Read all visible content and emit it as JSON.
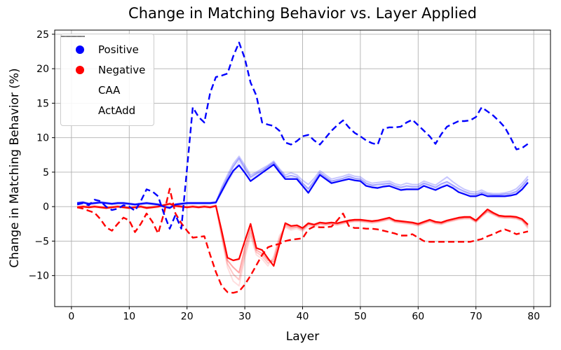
{
  "chart_data": {
    "type": "line",
    "title": "Change in Matching Behavior vs. Layer Applied",
    "xlabel": "Layer",
    "ylabel": "Change in Matching Behavior (%)",
    "xlim": [
      -2.9,
      82.9
    ],
    "ylim": [
      -14.5,
      25.6
    ],
    "xticks": [
      0,
      10,
      20,
      30,
      40,
      50,
      60,
      70,
      80
    ],
    "yticks": [
      -10,
      -5,
      0,
      5,
      10,
      15,
      20,
      25
    ],
    "grid": true,
    "style": {
      "grid_color": "#b0b0b0",
      "spine_color": "#000000",
      "background": "#ffffff",
      "positive_color": "#0000ff",
      "negative_color": "#ff0000",
      "legend_handle_color": "#7f7f7f"
    },
    "legend": {
      "position": "upper left",
      "entries": [
        {
          "label": "Positive",
          "marker": "dot",
          "color": "#0000ff"
        },
        {
          "label": "Negative",
          "marker": "dot",
          "color": "#ff0000"
        },
        {
          "label": "CAA",
          "marker": "line-solid",
          "color": "#7f7f7f"
        },
        {
          "label": "ActAdd",
          "marker": "line-dashed",
          "color": "#7f7f7f"
        }
      ]
    },
    "x": [
      1,
      2,
      3,
      4,
      5,
      6,
      7,
      8,
      9,
      10,
      11,
      12,
      13,
      14,
      15,
      16,
      17,
      18,
      19,
      20,
      21,
      22,
      23,
      24,
      25,
      26,
      27,
      28,
      29,
      30,
      31,
      32,
      33,
      34,
      35,
      36,
      37,
      38,
      39,
      40,
      41,
      42,
      43,
      44,
      45,
      46,
      47,
      48,
      49,
      50,
      51,
      52,
      53,
      54,
      55,
      56,
      57,
      58,
      59,
      60,
      61,
      62,
      63,
      64,
      65,
      66,
      67,
      68,
      69,
      70,
      71,
      72,
      73,
      74,
      75,
      76,
      77,
      78,
      79
    ],
    "series": [
      {
        "id": "caa-positive-run3",
        "group": "Positive",
        "method": "CAA",
        "color": "#0000ff",
        "dash": false,
        "alpha": 0.13,
        "width": 2,
        "values": [
          0.5,
          0.6,
          0.4,
          0.5,
          0.6,
          0.5,
          0.4,
          0.5,
          0.5,
          0.4,
          0.3,
          0.4,
          0.5,
          0.4,
          0.3,
          0.0,
          -0.2,
          0.3,
          0.4,
          0.5,
          0.5,
          0.5,
          0.5,
          0.5,
          0.6,
          2.0,
          3.5,
          4.9,
          6.6,
          5.3,
          4.1,
          4.6,
          5.1,
          5.7,
          6.3,
          5.1,
          4.2,
          4.2,
          4.1,
          3.2,
          2.3,
          3.5,
          4.7,
          4.1,
          3.6,
          3.7,
          3.9,
          4.2,
          3.9,
          3.8,
          3.2,
          3.0,
          2.9,
          3.1,
          3.2,
          2.8,
          2.6,
          2.7,
          2.7,
          2.7,
          3.2,
          2.9,
          2.6,
          3.0,
          3.3,
          2.9,
          2.3,
          2.0,
          1.7,
          1.6,
          1.9,
          1.6,
          1.6,
          1.6,
          1.6,
          1.7,
          2.0,
          2.7,
          3.7
        ]
      },
      {
        "id": "caa-positive-run2",
        "group": "Positive",
        "method": "CAA",
        "color": "#0000ff",
        "dash": false,
        "alpha": 0.22,
        "width": 2,
        "values": [
          0.4,
          0.5,
          0.3,
          0.4,
          0.5,
          0.4,
          0.3,
          0.4,
          0.4,
          0.3,
          0.2,
          0.3,
          0.4,
          0.3,
          0.2,
          -0.1,
          -0.3,
          0.2,
          0.3,
          0.4,
          0.4,
          0.4,
          0.4,
          0.4,
          0.5,
          2.8,
          4.6,
          6.2,
          7.3,
          6.0,
          4.6,
          5.0,
          5.5,
          6.0,
          6.6,
          5.5,
          4.6,
          4.9,
          4.6,
          3.8,
          3.2,
          4.1,
          5.2,
          4.6,
          4.0,
          4.2,
          4.4,
          4.7,
          4.4,
          4.3,
          3.7,
          3.4,
          3.5,
          3.6,
          3.7,
          3.3,
          3.1,
          3.4,
          3.2,
          3.2,
          3.7,
          3.4,
          3.1,
          3.7,
          4.3,
          3.6,
          3.0,
          2.5,
          2.2,
          2.1,
          2.4,
          2.0,
          1.9,
          1.9,
          2.0,
          2.2,
          2.6,
          3.4,
          4.4
        ]
      },
      {
        "id": "caa-positive-run1",
        "group": "Positive",
        "method": "CAA",
        "color": "#0000ff",
        "dash": false,
        "alpha": 0.35,
        "width": 2,
        "values": [
          0.6,
          0.7,
          0.5,
          0.6,
          0.7,
          0.6,
          0.5,
          0.6,
          0.6,
          0.5,
          0.4,
          0.5,
          0.6,
          0.5,
          0.4,
          0.1,
          -0.1,
          0.4,
          0.5,
          0.6,
          0.6,
          0.6,
          0.6,
          0.6,
          0.7,
          2.5,
          4.2,
          5.8,
          7.0,
          5.6,
          4.3,
          4.8,
          5.2,
          5.8,
          6.4,
          5.3,
          4.3,
          4.5,
          4.3,
          3.4,
          2.6,
          3.7,
          4.9,
          4.3,
          3.7,
          3.9,
          4.1,
          4.4,
          4.1,
          4.0,
          3.4,
          3.1,
          3.2,
          3.3,
          3.4,
          3.0,
          2.8,
          3.0,
          2.9,
          2.9,
          3.4,
          3.1,
          2.8,
          3.3,
          3.6,
          3.1,
          2.6,
          2.2,
          1.9,
          1.8,
          2.1,
          1.8,
          1.7,
          1.7,
          1.8,
          1.9,
          2.2,
          3.0,
          4.0
        ]
      },
      {
        "id": "caa-negative-run3",
        "group": "Negative",
        "method": "CAA",
        "color": "#ff0000",
        "dash": false,
        "alpha": 0.13,
        "width": 2,
        "values": [
          -0.1,
          0.0,
          -0.1,
          0.0,
          -0.1,
          -0.2,
          -0.1,
          0.0,
          -0.1,
          -0.2,
          -0.1,
          0.0,
          -0.2,
          -0.1,
          0.0,
          0.2,
          0.4,
          0.1,
          0.0,
          -0.1,
          0.0,
          -0.1,
          0.0,
          -0.1,
          0.1,
          -4.5,
          -8.8,
          -10.8,
          -11.5,
          -7.5,
          -4.3,
          -7.0,
          -7.6,
          -8.6,
          -7.2,
          -4.2,
          -3.0,
          -3.4,
          -3.2,
          -3.6,
          -2.8,
          -3.0,
          -2.6,
          -2.7,
          -2.6,
          -2.7,
          -2.5,
          -2.3,
          -2.2,
          -2.2,
          -2.3,
          -2.4,
          -2.3,
          -2.1,
          -1.9,
          -2.3,
          -2.4,
          -2.5,
          -2.6,
          -2.8,
          -2.5,
          -2.2,
          -2.5,
          -2.6,
          -2.3,
          -2.1,
          -1.9,
          -1.8,
          -1.8,
          -2.3,
          -1.5,
          -0.8,
          -1.2,
          -1.6,
          -1.7,
          -1.7,
          -1.8,
          -2.1,
          -3.2
        ]
      },
      {
        "id": "caa-negative-run2",
        "group": "Negative",
        "method": "CAA",
        "color": "#ff0000",
        "dash": false,
        "alpha": 0.22,
        "width": 2,
        "values": [
          -0.2,
          -0.1,
          -0.2,
          -0.1,
          -0.2,
          -0.3,
          -0.2,
          -0.1,
          -0.2,
          -0.3,
          -0.2,
          -0.1,
          -0.3,
          -0.2,
          -0.1,
          0.1,
          0.3,
          0.0,
          -0.1,
          -0.2,
          -0.1,
          -0.2,
          -0.1,
          -0.2,
          0.0,
          -4.2,
          -8.3,
          -9.8,
          -10.6,
          -6.8,
          -3.8,
          -6.6,
          -7.2,
          -8.2,
          -7.6,
          -4.6,
          -2.8,
          -3.2,
          -3.0,
          -3.4,
          -2.6,
          -2.8,
          -2.5,
          -2.6,
          -2.5,
          -2.6,
          -2.4,
          -2.2,
          -2.1,
          -2.1,
          -2.2,
          -2.3,
          -2.2,
          -2.0,
          -1.8,
          -2.2,
          -2.3,
          -2.4,
          -2.5,
          -2.7,
          -2.4,
          -2.1,
          -2.4,
          -2.5,
          -2.2,
          -2.0,
          -1.8,
          -1.7,
          -1.7,
          -2.2,
          -1.4,
          -0.7,
          -1.1,
          -1.5,
          -1.6,
          -1.6,
          -1.7,
          -2.0,
          -3.0
        ]
      },
      {
        "id": "caa-negative-run1",
        "group": "Negative",
        "method": "CAA",
        "color": "#ff0000",
        "dash": false,
        "alpha": 0.35,
        "width": 2,
        "values": [
          0.0,
          0.1,
          0.0,
          0.1,
          0.0,
          -0.1,
          0.0,
          0.1,
          0.0,
          -0.1,
          0.0,
          0.1,
          -0.1,
          0.0,
          0.1,
          0.3,
          0.5,
          0.2,
          0.1,
          0.0,
          0.1,
          0.0,
          0.1,
          0.0,
          0.2,
          -3.8,
          -7.8,
          -8.8,
          -9.6,
          -6.0,
          -3.2,
          -6.3,
          -6.8,
          -7.8,
          -8.0,
          -5.0,
          -2.6,
          -3.0,
          -2.9,
          -3.3,
          -2.5,
          -2.7,
          -2.4,
          -2.5,
          -2.4,
          -2.5,
          -2.3,
          -2.1,
          -2.0,
          -2.0,
          -2.1,
          -2.2,
          -2.1,
          -1.9,
          -1.7,
          -2.1,
          -2.2,
          -2.3,
          -2.4,
          -2.6,
          -2.3,
          -2.0,
          -2.3,
          -2.4,
          -2.1,
          -1.9,
          -1.7,
          -1.6,
          -1.6,
          -2.1,
          -1.3,
          -0.6,
          -1.0,
          -1.4,
          -1.5,
          -1.5,
          -1.6,
          -1.9,
          -2.8
        ]
      },
      {
        "id": "caa-negative-main",
        "group": "Negative",
        "method": "CAA",
        "color": "#ff0000",
        "dash": false,
        "alpha": 1.0,
        "width": 2.2,
        "values": [
          -0.1,
          0.0,
          -0.1,
          0.0,
          -0.1,
          -0.2,
          -0.1,
          0.0,
          -0.1,
          -0.2,
          -0.1,
          0.0,
          -0.2,
          -0.1,
          0.0,
          0.2,
          0.4,
          0.1,
          0.0,
          -0.1,
          0.0,
          -0.1,
          0.0,
          -0.1,
          0.1,
          -3.5,
          -7.4,
          -7.8,
          -7.6,
          -5.0,
          -2.5,
          -6.0,
          -6.3,
          -7.5,
          -8.6,
          -5.5,
          -2.4,
          -2.8,
          -2.7,
          -3.1,
          -2.4,
          -2.6,
          -2.3,
          -2.4,
          -2.3,
          -2.4,
          -2.2,
          -2.0,
          -1.9,
          -1.9,
          -2.0,
          -2.1,
          -2.0,
          -1.8,
          -1.6,
          -2.0,
          -2.1,
          -2.2,
          -2.3,
          -2.5,
          -2.2,
          -1.9,
          -2.2,
          -2.3,
          -2.0,
          -1.8,
          -1.6,
          -1.5,
          -1.5,
          -2.0,
          -1.2,
          -0.4,
          -0.9,
          -1.3,
          -1.4,
          -1.4,
          -1.5,
          -1.8,
          -2.6
        ]
      },
      {
        "id": "caa-positive-main",
        "group": "Positive",
        "method": "CAA",
        "color": "#0000ff",
        "dash": false,
        "alpha": 1.0,
        "width": 2.2,
        "values": [
          0.5,
          0.6,
          0.4,
          0.5,
          0.6,
          0.5,
          0.4,
          0.5,
          0.5,
          0.4,
          0.3,
          0.4,
          0.5,
          0.4,
          0.3,
          0.0,
          -0.2,
          0.3,
          0.4,
          0.5,
          0.5,
          0.5,
          0.5,
          0.5,
          0.6,
          2.2,
          3.8,
          5.2,
          6.0,
          4.9,
          3.7,
          4.3,
          4.9,
          5.5,
          6.1,
          5.0,
          4.0,
          4.0,
          4.0,
          3.0,
          2.0,
          3.3,
          4.6,
          4.0,
          3.4,
          3.6,
          3.8,
          4.0,
          3.8,
          3.7,
          3.0,
          2.8,
          2.7,
          2.9,
          3.0,
          2.7,
          2.4,
          2.5,
          2.5,
          2.5,
          3.0,
          2.7,
          2.4,
          2.8,
          3.1,
          2.7,
          2.1,
          1.8,
          1.5,
          1.5,
          1.8,
          1.5,
          1.5,
          1.5,
          1.5,
          1.6,
          1.8,
          2.5,
          3.5
        ]
      },
      {
        "id": "actadd-negative",
        "group": "Negative",
        "method": "ActAdd",
        "color": "#ff0000",
        "dash": true,
        "alpha": 1.0,
        "width": 2.4,
        "values": [
          -0.1,
          -0.3,
          -0.6,
          -0.9,
          -1.8,
          -3.0,
          -3.5,
          -2.5,
          -1.6,
          -2.0,
          -3.7,
          -2.5,
          -1.0,
          -2.2,
          -3.9,
          -1.0,
          2.6,
          -1.0,
          -2.4,
          -3.5,
          -4.5,
          -4.4,
          -4.3,
          -7.0,
          -9.5,
          -11.5,
          -12.4,
          -12.5,
          -12.3,
          -11.3,
          -10.0,
          -8.5,
          -7.0,
          -5.9,
          -5.6,
          -5.4,
          -5.0,
          -4.8,
          -4.7,
          -4.6,
          -3.3,
          -2.9,
          -3.0,
          -3.0,
          -2.9,
          -2.0,
          -1.0,
          -2.8,
          -3.1,
          -3.1,
          -3.2,
          -3.2,
          -3.3,
          -3.5,
          -3.7,
          -3.9,
          -4.2,
          -4.2,
          -4.0,
          -4.5,
          -5.0,
          -5.1,
          -5.1,
          -5.1,
          -5.1,
          -5.1,
          -5.1,
          -5.1,
          -5.1,
          -4.9,
          -4.7,
          -4.3,
          -4.0,
          -3.6,
          -3.3,
          -3.6,
          -4.0,
          -3.8,
          -3.6
        ]
      },
      {
        "id": "actadd-positive",
        "group": "Positive",
        "method": "ActAdd",
        "color": "#0000ff",
        "dash": true,
        "alpha": 1.0,
        "width": 2.4,
        "values": [
          0.3,
          0.5,
          0.2,
          1.0,
          0.8,
          0.0,
          -0.5,
          -0.3,
          0.2,
          0.0,
          -0.6,
          0.8,
          2.5,
          2.2,
          1.5,
          -1.0,
          -3.2,
          -1.2,
          -3.2,
          5.5,
          14.4,
          13.0,
          12.2,
          16.5,
          18.8,
          19.0,
          19.3,
          21.8,
          23.8,
          21.5,
          18.0,
          16.1,
          12.2,
          11.9,
          11.7,
          11.0,
          9.3,
          9.0,
          9.5,
          10.2,
          10.4,
          9.6,
          9.0,
          10.0,
          11.0,
          11.8,
          12.5,
          11.5,
          10.7,
          10.2,
          9.6,
          9.2,
          9.0,
          11.3,
          11.5,
          11.5,
          11.6,
          12.2,
          12.6,
          11.8,
          11.0,
          10.2,
          9.1,
          10.5,
          11.6,
          12.0,
          12.4,
          12.4,
          12.5,
          13.0,
          14.4,
          13.8,
          13.2,
          12.4,
          11.5,
          10.0,
          8.3,
          8.5,
          9.1
        ]
      }
    ]
  }
}
